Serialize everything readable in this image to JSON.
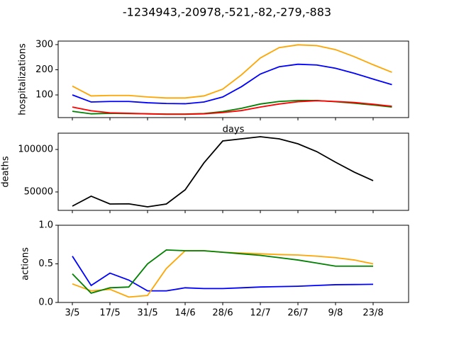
{
  "title": "-1234943,-20978,-521,-82,-279,-883",
  "chart_data": [
    {
      "type": "line",
      "ylabel": "hospitalizations",
      "xlabel": "days",
      "ylim": [
        10,
        314
      ],
      "yticks": [
        100,
        200,
        300
      ],
      "series": [
        {
          "color": "#ffa500",
          "values": [
            135,
            96,
            98,
            98,
            92,
            88,
            88,
            96,
            123,
            180,
            247,
            288,
            299,
            296,
            280,
            252,
            220,
            190
          ]
        },
        {
          "color": "#0000ff",
          "values": [
            100,
            72,
            74,
            74,
            69,
            66,
            65,
            72,
            92,
            133,
            183,
            212,
            222,
            219,
            206,
            186,
            163,
            141
          ]
        },
        {
          "color": "#008000",
          "values": [
            35,
            25,
            27,
            26,
            25,
            24,
            24,
            26,
            34,
            47,
            64,
            74,
            78,
            78,
            73,
            67,
            60,
            52
          ]
        },
        {
          "color": "#ff0000",
          "values": [
            52,
            37,
            29,
            27,
            25,
            23,
            23,
            25,
            30,
            38,
            52,
            64,
            73,
            77,
            74,
            70,
            63,
            55
          ]
        }
      ]
    },
    {
      "type": "line",
      "ylabel": "deaths",
      "ylim": [
        28300,
        119200
      ],
      "yticks": [
        50000,
        100000
      ],
      "series": [
        {
          "color": "#000000",
          "values": [
            33300,
            45000,
            35800,
            36000,
            32500,
            35800,
            52500,
            84200,
            110000,
            112500,
            115000,
            112500,
            106700,
            97500,
            85000,
            73300,
            63300,
            null
          ]
        }
      ]
    },
    {
      "type": "line",
      "ylabel": "actions",
      "categories": [
        "3/5",
        null,
        "17/5",
        null,
        "31/5",
        null,
        "14/6",
        null,
        "28/6",
        null,
        "12/7",
        null,
        "26/7",
        null,
        "9/8",
        null,
        "23/8",
        null
      ],
      "ylim": [
        0,
        1
      ],
      "yticks": [
        {
          "value": 0,
          "label": "0.0"
        },
        0.5,
        {
          "value": 1,
          "label": "1.0"
        }
      ],
      "series": [
        {
          "color": "#0000ff",
          "values": [
            0.6,
            0.22,
            0.38,
            0.29,
            0.15,
            0.15,
            0.19,
            0.18,
            0.18,
            0.19,
            0.2,
            0.205,
            0.21,
            0.22,
            0.23,
            0.232,
            0.235,
            null
          ]
        },
        {
          "color": "#ffa500",
          "values": [
            0.24,
            0.15,
            0.17,
            0.07,
            0.09,
            0.44,
            0.67,
            0.67,
            0.65,
            0.64,
            0.63,
            0.62,
            0.615,
            0.6,
            0.58,
            0.55,
            0.5,
            null
          ]
        },
        {
          "color": "#008000",
          "values": [
            0.37,
            0.12,
            0.19,
            0.2,
            0.5,
            0.68,
            0.67,
            0.67,
            0.65,
            0.63,
            0.61,
            0.58,
            0.55,
            0.51,
            0.47,
            0.47,
            0.47,
            null
          ]
        }
      ]
    }
  ]
}
